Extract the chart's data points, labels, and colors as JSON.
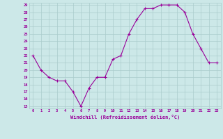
{
  "x": [
    0,
    1,
    2,
    3,
    4,
    5,
    6,
    7,
    8,
    9,
    10,
    11,
    12,
    13,
    14,
    15,
    16,
    17,
    18,
    19,
    20,
    21,
    22,
    23
  ],
  "y": [
    22,
    20,
    19,
    18.5,
    18.5,
    17,
    15,
    17.5,
    19,
    19,
    21.5,
    22,
    25,
    27,
    28.5,
    28.5,
    29,
    29,
    29,
    28,
    25,
    23,
    21,
    21
  ],
  "line_color": "#990099",
  "marker": "+",
  "marker_size": 3,
  "marker_color": "#990099",
  "background_color": "#cce8e8",
  "grid_color": "#aacccc",
  "xlabel": "Windchill (Refroidissement éolien,°C)",
  "xlabel_color": "#990099",
  "tick_color": "#990099",
  "ylim": [
    15,
    29
  ],
  "xlim": [
    0,
    23
  ],
  "yticks": [
    15,
    16,
    17,
    18,
    19,
    20,
    21,
    22,
    23,
    24,
    25,
    26,
    27,
    28,
    29
  ],
  "xticks": [
    0,
    1,
    2,
    3,
    4,
    5,
    6,
    7,
    8,
    9,
    10,
    11,
    12,
    13,
    14,
    15,
    16,
    17,
    18,
    19,
    20,
    21,
    22,
    23
  ],
  "line_width": 0.8
}
